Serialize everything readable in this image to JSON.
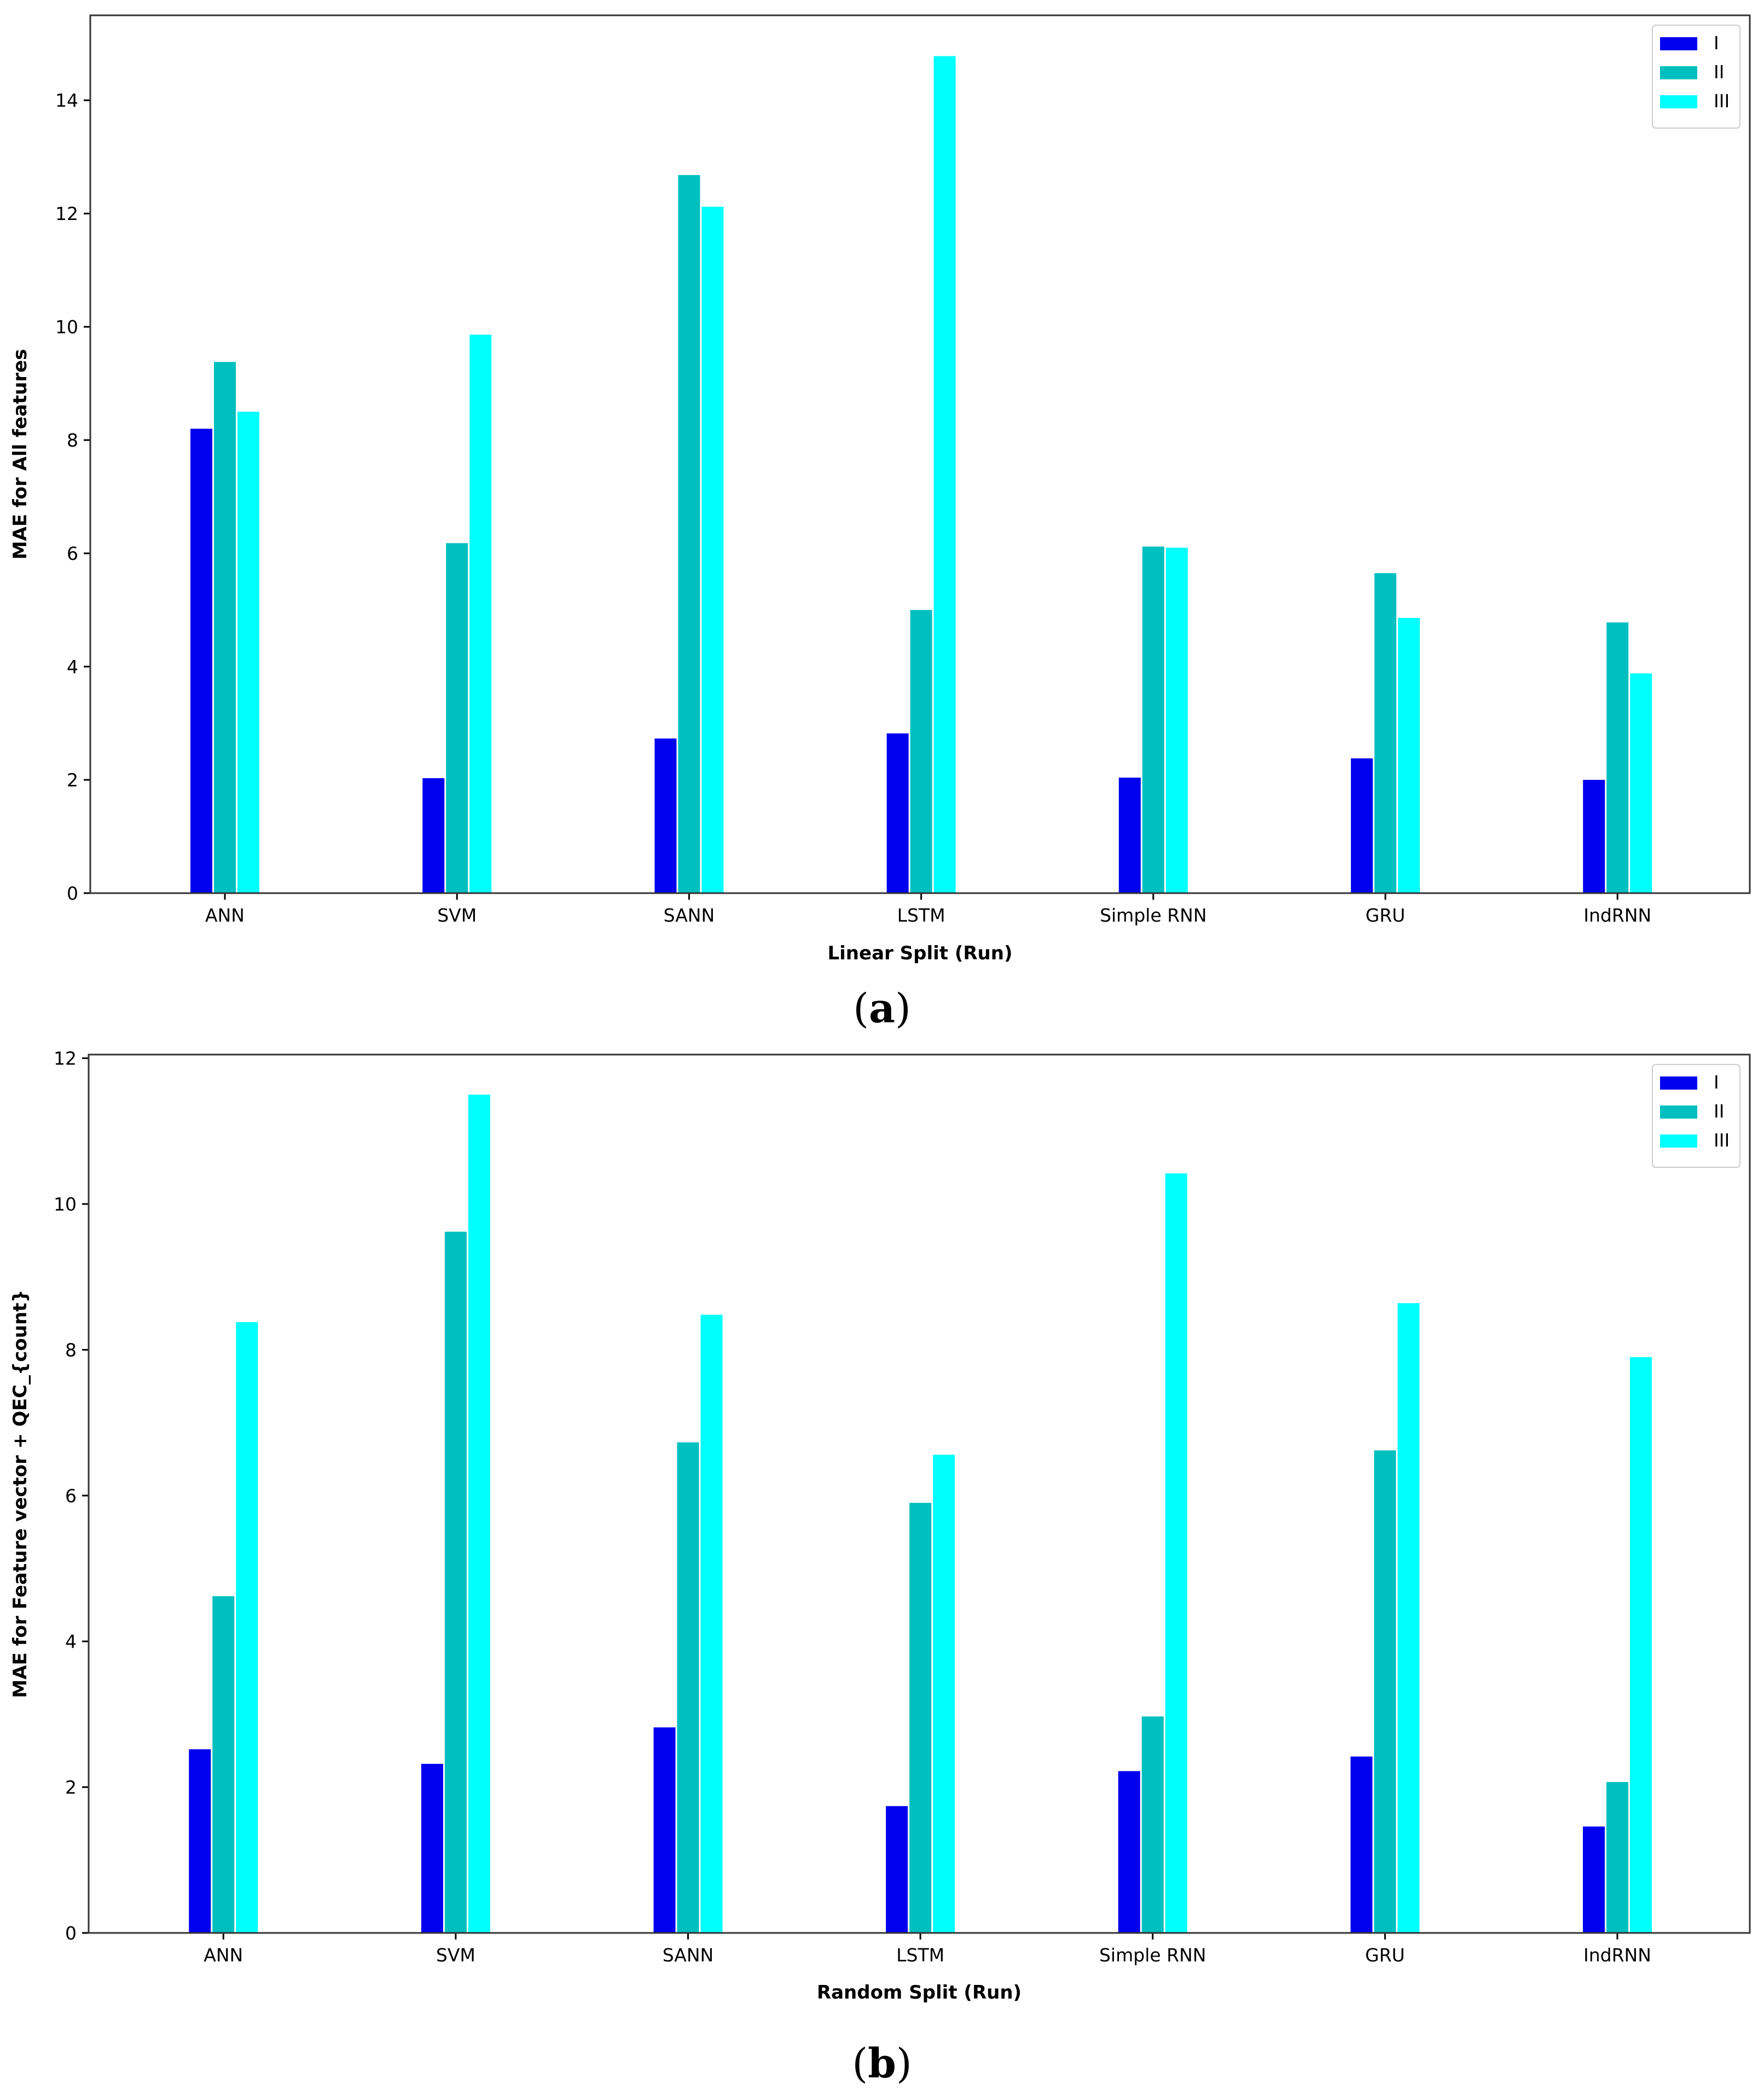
{
  "captions": [
    {
      "open": "(",
      "letter": "a",
      "close": ")"
    },
    {
      "open": "(",
      "letter": "b",
      "close": ")"
    }
  ],
  "series_colors": {
    "I": "#0000ee",
    "II": "#00bfbf",
    "III": "#00ffff"
  },
  "chart_data": [
    {
      "type": "bar",
      "title": "",
      "xlabel": "Linear Split (Run)",
      "ylabel": "MAE for All features",
      "categories": [
        "ANN",
        "SVM",
        "SANN",
        "LSTM",
        "Simple RNN",
        "GRU",
        "IndRNN"
      ],
      "series": [
        {
          "name": "I",
          "values": [
            8.2,
            2.03,
            2.73,
            2.82,
            2.04,
            2.38,
            2.0
          ]
        },
        {
          "name": "II",
          "values": [
            9.38,
            6.18,
            12.68,
            5.0,
            6.12,
            5.65,
            4.78
          ]
        },
        {
          "name": "III",
          "values": [
            8.5,
            9.86,
            12.12,
            14.78,
            6.1,
            4.86,
            3.88
          ]
        }
      ],
      "ylim": [
        0,
        15.5
      ],
      "yticks": [
        0,
        2,
        4,
        6,
        8,
        10,
        12,
        14
      ],
      "legend": "top-right",
      "grid": false
    },
    {
      "type": "bar",
      "title": "",
      "xlabel": "Random Split (Run)",
      "ylabel": "MAE for Feature vector + QEC_{count}",
      "categories": [
        "ANN",
        "SVM",
        "SANN",
        "LSTM",
        "Simple RNN",
        "GRU",
        "IndRNN"
      ],
      "series": [
        {
          "name": "I",
          "values": [
            2.52,
            2.32,
            2.82,
            1.74,
            2.22,
            2.42,
            1.46
          ]
        },
        {
          "name": "II",
          "values": [
            4.62,
            9.62,
            6.73,
            5.9,
            2.97,
            6.62,
            2.07
          ]
        },
        {
          "name": "III",
          "values": [
            8.38,
            11.5,
            8.48,
            6.56,
            10.42,
            8.64,
            7.9
          ]
        }
      ],
      "ylim": [
        0,
        12.05
      ],
      "yticks": [
        0,
        2,
        4,
        6,
        8,
        10,
        12
      ],
      "legend": "top-right",
      "grid": false
    }
  ]
}
